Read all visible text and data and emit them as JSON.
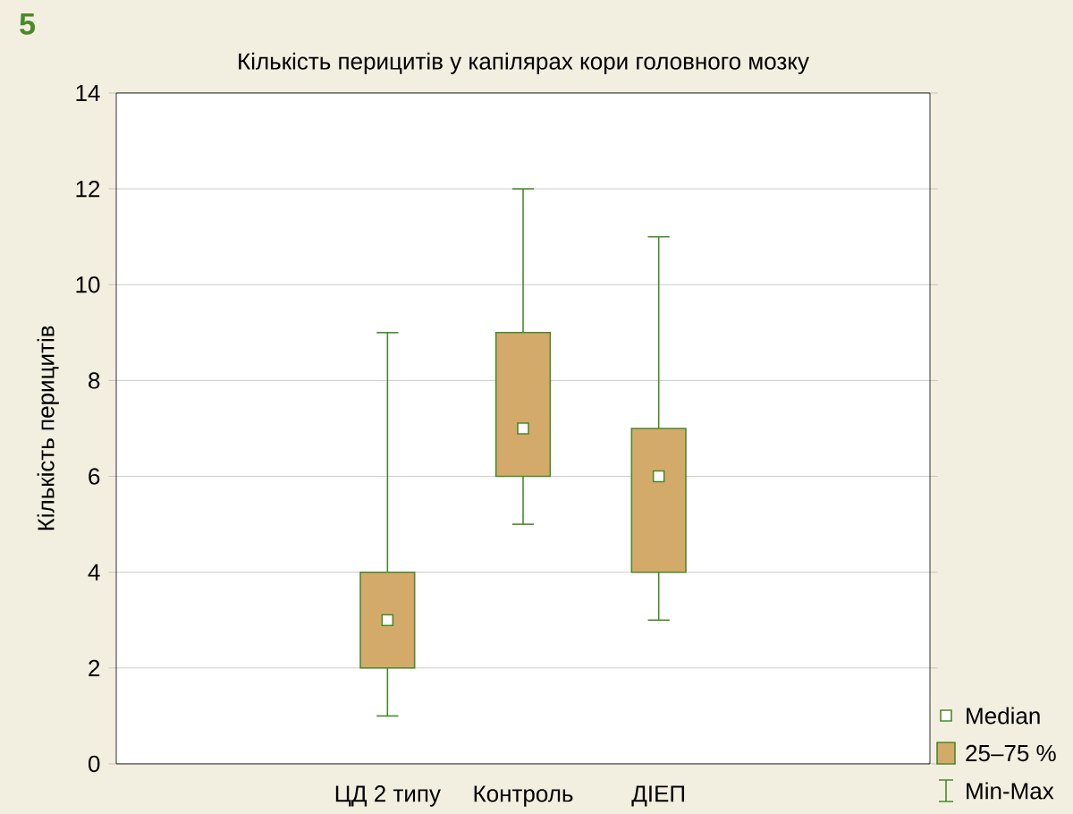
{
  "chart_data": {
    "type": "box",
    "title": "Кількість перицитів у капілярах кори головного мозку",
    "ylabel": "Кількість перицитів",
    "categories": [
      null,
      null,
      "ЦД 2 типу",
      "Контроль",
      "ДІЕП",
      null,
      null
    ],
    "boxes": [
      null,
      null,
      {
        "low": 1,
        "q1": 2,
        "median": 3,
        "q3": 4,
        "high": 9
      },
      {
        "low": 5,
        "q1": 6,
        "median": 7,
        "q3": 9,
        "high": 12
      },
      {
        "low": 3,
        "q1": 4,
        "median": 6,
        "q3": 7,
        "high": 11
      },
      null,
      null
    ],
    "color": "#d4aa6a",
    "ylim": [
      0,
      14
    ],
    "yticks": [
      0,
      2,
      4,
      6,
      8,
      10,
      12,
      14
    ],
    "grid": "y",
    "annotations": [
      "5",
      "Median",
      "25–75 %",
      "Min-Max"
    ]
  }
}
